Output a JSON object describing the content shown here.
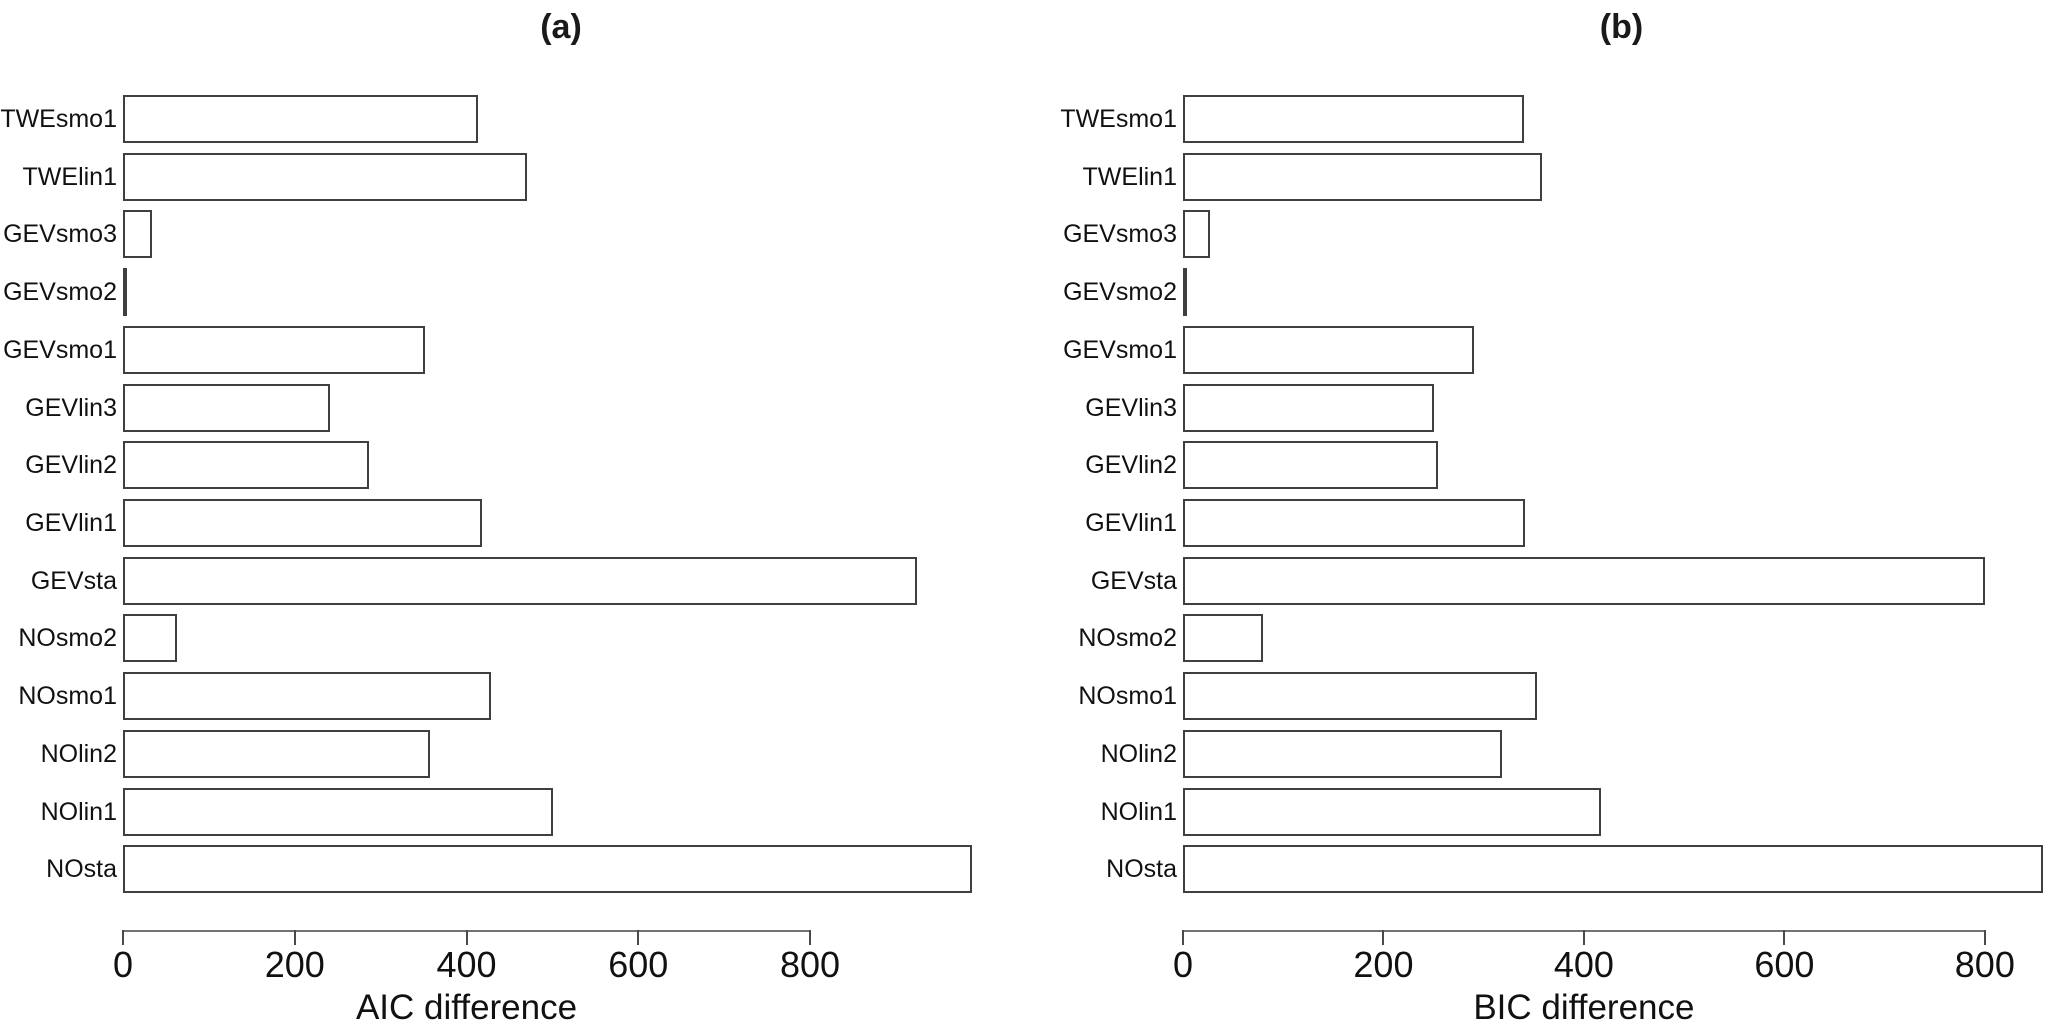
{
  "figure_background": "#ffffff",
  "styles": {
    "bar_fill": "#ffffff",
    "bar_border": "#3f3f3f",
    "axis_color": "#737373",
    "tick_color": "#4a4a4a",
    "text_color": "#111111"
  },
  "chart_data": [
    {
      "type": "bar",
      "orientation": "horizontal",
      "panel_label": "(a)",
      "xlabel": "AIC difference",
      "categories": [
        "TWEsmo1",
        "TWElin1",
        "GEVsmo3",
        "GEVsmo2",
        "GEVsmo1",
        "GEVlin3",
        "GEVlin2",
        "GEVlin1",
        "GEVsta",
        "NOsmo2",
        "NOsmo1",
        "NOlin2",
        "NOlin1",
        "NOsta"
      ],
      "values": [
        413,
        470,
        34,
        2,
        352,
        241,
        287,
        418,
        924,
        63,
        429,
        357,
        501,
        988
      ],
      "xticks": [
        0,
        200,
        400,
        600,
        800
      ],
      "xlim": [
        0,
        1020
      ],
      "grid": false,
      "legend": "none"
    },
    {
      "type": "bar",
      "orientation": "horizontal",
      "panel_label": "(b)",
      "xlabel": "BIC difference",
      "categories": [
        "TWEsmo1",
        "TWElin1",
        "GEVsmo3",
        "GEVsmo2",
        "GEVsmo1",
        "GEVlin3",
        "GEVlin2",
        "GEVlin1",
        "GEVsta",
        "NOsmo2",
        "NOsmo1",
        "NOlin2",
        "NOlin1",
        "NOsta"
      ],
      "values": [
        340,
        358,
        27,
        2,
        290,
        250,
        254,
        341,
        800,
        80,
        353,
        318,
        417,
        858
      ],
      "xticks": [
        0,
        200,
        400,
        600,
        800
      ],
      "xlim": [
        0,
        875
      ],
      "grid": false,
      "legend": "none"
    }
  ]
}
